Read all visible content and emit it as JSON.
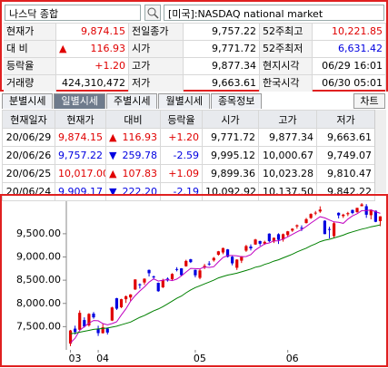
{
  "header": {
    "selector": "나스닥 종합",
    "market": "[미국]:NASDAQ national market"
  },
  "summary": [
    {
      "label": "현재가",
      "value": "9,874.15",
      "color": "#e00000"
    },
    {
      "label": "전일종가",
      "value": "9,757.22",
      "color": "#000000"
    },
    {
      "label": "52주최고",
      "value": "10,221.85",
      "color": "#e00000"
    },
    {
      "label": "대 비",
      "arrow": "▲",
      "value": "116.93",
      "color": "#e00000"
    },
    {
      "label": "시가",
      "value": "9,771.72",
      "color": "#000000"
    },
    {
      "label": "52주최저",
      "value": "6,631.42",
      "color": "#0000e0"
    },
    {
      "label": "등락율",
      "value": "+1.20",
      "color": "#e00000"
    },
    {
      "label": "고가",
      "value": "9,877.34",
      "color": "#000000"
    },
    {
      "label": "현지시각",
      "value": "06/29 16:01",
      "color": "#000000"
    },
    {
      "label": "거래량",
      "value": "424,310,472",
      "color": "#000000"
    },
    {
      "label": "저가",
      "value": "9,663.61",
      "color": "#000000"
    },
    {
      "label": "한국시각",
      "value": "06/30 05:01",
      "color": "#000000"
    }
  ],
  "tabs": [
    "분별시세",
    "일별시세",
    "주별시세",
    "월별시세",
    "종목정보"
  ],
  "active_tab": 1,
  "chart_button": "차트",
  "daily": {
    "columns": [
      "현재일자",
      "현재가",
      "대비",
      "등락율",
      "시가",
      "고가",
      "저가"
    ],
    "rows": [
      {
        "cells": [
          "20/06/29",
          "9,874.15",
          [
            "▲",
            "116.93"
          ],
          "+1.20",
          "9,771.72",
          "9,877.34",
          "9,663.61"
        ],
        "color": "#e00000"
      },
      {
        "cells": [
          "20/06/26",
          "9,757.22",
          [
            "▼",
            "259.78"
          ],
          "-2.59",
          "9,995.12",
          "10,000.67",
          "9,749.07"
        ],
        "color": "#0000e0"
      },
      {
        "cells": [
          "20/06/25",
          "10,017.00",
          [
            "▲",
            "107.83"
          ],
          "+1.09",
          "9,899.36",
          "10,023.28",
          "9,810.47"
        ],
        "color": "#e00000"
      },
      {
        "cells": [
          "20/06/24",
          "9,909.17",
          [
            "▼",
            "222.20"
          ],
          "-2.19",
          "10,092.92",
          "10,137.50",
          "9,842.22"
        ],
        "color": "#0000e0"
      }
    ]
  },
  "chart_data": {
    "type": "candlestick",
    "categories": [
      "03",
      null,
      null,
      null,
      null,
      null,
      "04",
      null,
      null,
      null,
      null,
      null,
      null,
      null,
      null,
      null,
      null,
      null,
      null,
      null,
      null,
      null,
      null,
      null,
      null,
      null,
      null,
      "05",
      null,
      null,
      null,
      null,
      null,
      null,
      null,
      null,
      null,
      null,
      null,
      null,
      null,
      null,
      null,
      null,
      null,
      null,
      null,
      "06",
      null,
      null,
      null,
      null,
      null,
      null,
      null,
      null,
      null,
      null,
      null,
      null,
      null,
      null,
      null,
      null,
      null,
      null,
      null,
      null
    ],
    "open": [
      7135,
      7457,
      7433,
      7642,
      7528,
      7780,
      7459,
      7360,
      7460,
      7631,
      8111,
      7917,
      8090,
      8128,
      8300,
      8412,
      8450,
      8721,
      8579,
      8443,
      8347,
      8533,
      8521,
      8740,
      8755,
      8800,
      8950,
      8722,
      8550,
      8770,
      8858,
      8927,
      9048,
      9097,
      9163,
      9005,
      8767,
      8920,
      9136,
      9224,
      9268,
      9343,
      9287,
      9502,
      9337,
      9490,
      9376,
      9471,
      9568,
      9658,
      9628,
      9730,
      9839,
      9940,
      9979,
      9780,
      9602,
      9450,
      9950,
      9880,
      9920,
      10011,
      9966,
      10094,
      10092.92,
      9899.36,
      9995.12,
      9771.72
    ],
    "high": [
      7430,
      7520,
      7850,
      7700,
      7790,
      7815,
      7520,
      7560,
      7480,
      7930,
      8120,
      8100,
      8170,
      8200,
      8520,
      8430,
      8540,
      8730,
      8600,
      8450,
      8530,
      8560,
      8650,
      8780,
      8760,
      8940,
      8960,
      8730,
      8740,
      8850,
      8910,
      9000,
      9130,
      9200,
      9170,
      9020,
      8950,
      9020,
      9260,
      9270,
      9390,
      9350,
      9350,
      9510,
      9420,
      9510,
      9505,
      9560,
      9620,
      9700,
      9680,
      9840,
      9940,
      9990,
      10090,
      9790,
      9650,
      9760,
      9960,
      9930,
      9970,
      10020,
      10060,
      10160,
      10137.5,
      10023.28,
      10000.67,
      9877.34
    ],
    "low": [
      7080,
      7330,
      7420,
      7480,
      7500,
      7670,
      7300,
      7350,
      7330,
      7620,
      7860,
      7900,
      8010,
      8050,
      8290,
      8320,
      8400,
      8580,
      8510,
      8250,
      8330,
      8470,
      8500,
      8690,
      8590,
      8790,
      8870,
      8560,
      8520,
      8740,
      8810,
      8900,
      9030,
      9060,
      8990,
      8820,
      8720,
      8870,
      9110,
      9140,
      9260,
      9240,
      9260,
      9320,
      9300,
      9280,
      9330,
      9440,
      9540,
      9610,
      9560,
      9720,
      9820,
      9900,
      9950,
      9490,
      9400,
      9410,
      9830,
      9840,
      9880,
      9920,
      9950,
      10090,
      9842.22,
      9810.47,
      9749.07,
      9663.61
    ],
    "close": [
      7417.86,
      7384.3,
      7797.54,
      7502.38,
      7774.15,
      7700.1,
      7360.58,
      7487.31,
      7373.08,
      7913.24,
      7887.26,
      8090.9,
      8153.58,
      8192.42,
      8515.74,
      8393.18,
      8532.36,
      8650.14,
      8560.73,
      8263.23,
      8495.38,
      8494.75,
      8634.52,
      8730.16,
      8607.73,
      8914.71,
      8889.55,
      8604.95,
      8710.71,
      8809.12,
      8854.39,
      8979.66,
      9121.32,
      9192.34,
      9002.55,
      8863.17,
      8943.72,
      9014.56,
      9234.83,
      9185.1,
      9375.78,
      9284.88,
      9324.59,
      9340.22,
      9412.36,
      9368.99,
      9489.87,
      9552.05,
      9608.38,
      9682.91,
      9615.81,
      9814.08,
      9924.75,
      9953.75,
      10020.35,
      9492.73,
      9588.81,
      9725.96,
      9895.87,
      9910.53,
      9943.05,
      9946.12,
      10056.48,
      10131.37,
      9909.17,
      10017.0,
      9757.22,
      9874.15
    ],
    "up_color": "#e00000",
    "down_color": "#0000e0",
    "series": [
      {
        "color": "#c000c0",
        "values": [
          7150,
          7250,
          7420,
          7500,
          7575,
          7632,
          7627,
          7565,
          7539,
          7566,
          7604,
          7750,
          7884,
          8047,
          8168,
          8269,
          8357,
          8457,
          8530,
          8480,
          8500,
          8513,
          8490,
          8524,
          8592,
          8676,
          8755,
          8749,
          8745,
          8786,
          8774,
          8792,
          8895,
          8991,
          9030,
          9032,
          9025,
          9003,
          9010,
          9048,
          9151,
          9219,
          9281,
          9302,
          9348,
          9346,
          9387,
          9433,
          9486,
          9540,
          9590,
          9655,
          9729,
          9798,
          9866,
          9841,
          9796,
          9756,
          9746,
          9723,
          9813,
          9884,
          9930,
          9997,
          9997,
          10012,
          9974,
          9938
        ]
      },
      {
        "color": "#008000",
        "values": [
          7350,
          7360,
          7380,
          7400,
          7420,
          7440,
          7450,
          7460,
          7470,
          7490,
          7510,
          7540,
          7570,
          7600,
          7650,
          7700,
          7740,
          7790,
          7840,
          7880,
          7930,
          7990,
          8050,
          8110,
          8160,
          8230,
          8290,
          8340,
          8380,
          8420,
          8460,
          8500,
          8550,
          8580,
          8610,
          8630,
          8650,
          8680,
          8710,
          8740,
          8780,
          8800,
          8840,
          8870,
          8910,
          8940,
          8980,
          9020,
          9060,
          9110,
          9150,
          9190,
          9240,
          9280,
          9330,
          9360,
          9380,
          9410,
          9440,
          9470,
          9510,
          9540,
          9570,
          9600,
          9620,
          9650,
          9670,
          9690
        ]
      }
    ],
    "ylim": [
      7000,
      10200
    ],
    "yticks": [
      {
        "value": 7500,
        "label": "7,500.00"
      },
      {
        "value": 8000,
        "label": "8,000.00"
      },
      {
        "value": 8500,
        "label": "8,500.00"
      },
      {
        "value": 9000,
        "label": "9,000.00"
      },
      {
        "value": 9500,
        "label": "9,500.00"
      }
    ]
  }
}
